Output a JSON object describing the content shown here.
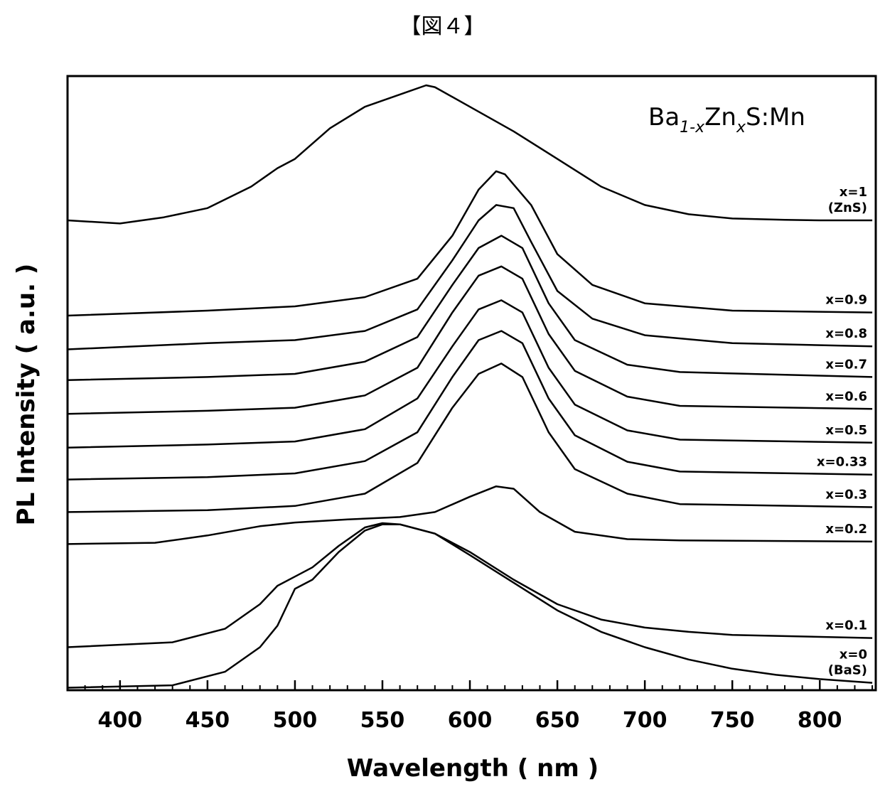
{
  "figure_label": "【図４】",
  "chart_data": {
    "type": "line",
    "title": "",
    "compound": {
      "base1": "Ba",
      "sub1": "1-x",
      "base2": "Zn",
      "sub2": "x",
      "base3": "S:Mn"
    },
    "xlabel": "Wavelength ( nm )",
    "ylabel": "PL Intensity ( a.u. )",
    "xlim": [
      370,
      832
    ],
    "ylim": [
      0,
      100
    ],
    "x_ticks": [
      400,
      450,
      500,
      550,
      600,
      650,
      700,
      750,
      800
    ],
    "grid": false,
    "legend": "labels at right end of each curve",
    "note": "Spectra are vertically offset; y values are relative units",
    "series": [
      {
        "name": "x=1 (ZnS)",
        "label_lines": [
          "x=1",
          "(ZnS)"
        ],
        "points": [
          [
            370,
            76.5
          ],
          [
            400,
            76.0
          ],
          [
            425,
            77.0
          ],
          [
            450,
            78.5
          ],
          [
            475,
            82.0
          ],
          [
            490,
            85.0
          ],
          [
            500,
            86.5
          ],
          [
            520,
            91.5
          ],
          [
            540,
            95.0
          ],
          [
            560,
            97.0
          ],
          [
            575,
            98.5
          ],
          [
            580,
            98.2
          ],
          [
            600,
            95.0
          ],
          [
            625,
            91.0
          ],
          [
            650,
            86.5
          ],
          [
            675,
            82.0
          ],
          [
            700,
            79.0
          ],
          [
            725,
            77.5
          ],
          [
            750,
            76.8
          ],
          [
            780,
            76.6
          ],
          [
            800,
            76.5
          ],
          [
            830,
            76.5
          ]
        ]
      },
      {
        "name": "x=0.9",
        "label_lines": [
          "x=0.9"
        ],
        "points": [
          [
            370,
            61.0
          ],
          [
            450,
            61.8
          ],
          [
            500,
            62.5
          ],
          [
            540,
            64.0
          ],
          [
            570,
            67.0
          ],
          [
            590,
            74.0
          ],
          [
            605,
            81.5
          ],
          [
            615,
            84.5
          ],
          [
            620,
            84.0
          ],
          [
            635,
            79.0
          ],
          [
            650,
            71.0
          ],
          [
            670,
            66.0
          ],
          [
            700,
            63.0
          ],
          [
            750,
            61.8
          ],
          [
            830,
            61.5
          ]
        ]
      },
      {
        "name": "x=0.8",
        "label_lines": [
          "x=0.8"
        ],
        "points": [
          [
            370,
            55.5
          ],
          [
            450,
            56.5
          ],
          [
            500,
            57.0
          ],
          [
            540,
            58.5
          ],
          [
            570,
            62.0
          ],
          [
            590,
            70.0
          ],
          [
            605,
            76.5
          ],
          [
            615,
            79.0
          ],
          [
            625,
            78.5
          ],
          [
            635,
            73.0
          ],
          [
            650,
            65.0
          ],
          [
            670,
            60.5
          ],
          [
            700,
            57.8
          ],
          [
            750,
            56.5
          ],
          [
            830,
            56.0
          ]
        ]
      },
      {
        "name": "x=0.7",
        "label_lines": [
          "x=0.7"
        ],
        "points": [
          [
            370,
            50.5
          ],
          [
            450,
            51.0
          ],
          [
            500,
            51.5
          ],
          [
            540,
            53.5
          ],
          [
            570,
            57.5
          ],
          [
            590,
            66.0
          ],
          [
            605,
            72.0
          ],
          [
            618,
            74.0
          ],
          [
            630,
            72.0
          ],
          [
            645,
            63.0
          ],
          [
            660,
            57.0
          ],
          [
            690,
            53.0
          ],
          [
            720,
            51.8
          ],
          [
            830,
            51.0
          ]
        ]
      },
      {
        "name": "x=0.6",
        "label_lines": [
          "x=0.6"
        ],
        "points": [
          [
            370,
            45.0
          ],
          [
            450,
            45.5
          ],
          [
            500,
            46.0
          ],
          [
            540,
            48.0
          ],
          [
            570,
            52.5
          ],
          [
            590,
            61.5
          ],
          [
            605,
            67.5
          ],
          [
            618,
            69.0
          ],
          [
            630,
            67.0
          ],
          [
            645,
            58.0
          ],
          [
            660,
            52.0
          ],
          [
            690,
            47.8
          ],
          [
            720,
            46.3
          ],
          [
            830,
            45.8
          ]
        ]
      },
      {
        "name": "x=0.5",
        "label_lines": [
          "x=0.5"
        ],
        "points": [
          [
            370,
            39.5
          ],
          [
            450,
            40.0
          ],
          [
            500,
            40.5
          ],
          [
            540,
            42.5
          ],
          [
            570,
            47.5
          ],
          [
            590,
            56.0
          ],
          [
            605,
            62.0
          ],
          [
            618,
            63.5
          ],
          [
            630,
            61.5
          ],
          [
            645,
            52.5
          ],
          [
            660,
            46.5
          ],
          [
            690,
            42.3
          ],
          [
            720,
            40.8
          ],
          [
            830,
            40.3
          ]
        ]
      },
      {
        "name": "x=0.33",
        "label_lines": [
          "x=0.33"
        ],
        "points": [
          [
            370,
            34.3
          ],
          [
            450,
            34.7
          ],
          [
            500,
            35.3
          ],
          [
            540,
            37.3
          ],
          [
            570,
            42.0
          ],
          [
            590,
            51.0
          ],
          [
            605,
            57.0
          ],
          [
            618,
            58.5
          ],
          [
            630,
            56.5
          ],
          [
            645,
            47.5
          ],
          [
            660,
            41.5
          ],
          [
            690,
            37.2
          ],
          [
            720,
            35.6
          ],
          [
            830,
            35.1
          ]
        ]
      },
      {
        "name": "x=0.3",
        "label_lines": [
          "x=0.3"
        ],
        "points": [
          [
            370,
            29.0
          ],
          [
            450,
            29.3
          ],
          [
            500,
            30.0
          ],
          [
            540,
            32.0
          ],
          [
            570,
            37.0
          ],
          [
            590,
            46.0
          ],
          [
            605,
            51.5
          ],
          [
            618,
            53.2
          ],
          [
            630,
            51.0
          ],
          [
            645,
            42.0
          ],
          [
            660,
            36.0
          ],
          [
            690,
            32.0
          ],
          [
            720,
            30.3
          ],
          [
            830,
            29.8
          ]
        ]
      },
      {
        "name": "x=0.2",
        "label_lines": [
          "x=0.2"
        ],
        "points": [
          [
            370,
            23.8
          ],
          [
            420,
            24.0
          ],
          [
            450,
            25.2
          ],
          [
            480,
            26.7
          ],
          [
            500,
            27.3
          ],
          [
            530,
            27.8
          ],
          [
            560,
            28.2
          ],
          [
            580,
            29.0
          ],
          [
            600,
            31.5
          ],
          [
            615,
            33.2
          ],
          [
            625,
            32.8
          ],
          [
            640,
            29.0
          ],
          [
            660,
            25.8
          ],
          [
            690,
            24.6
          ],
          [
            720,
            24.4
          ],
          [
            830,
            24.2
          ]
        ]
      },
      {
        "name": "x=0.1",
        "label_lines": [
          "x=0.1"
        ],
        "points": [
          [
            370,
            7.0
          ],
          [
            430,
            7.8
          ],
          [
            460,
            10.0
          ],
          [
            480,
            14.0
          ],
          [
            490,
            17.0
          ],
          [
            500,
            18.5
          ],
          [
            510,
            20.0
          ],
          [
            525,
            23.5
          ],
          [
            540,
            26.5
          ],
          [
            550,
            27.2
          ],
          [
            560,
            27.0
          ],
          [
            580,
            25.5
          ],
          [
            600,
            22.5
          ],
          [
            625,
            18.0
          ],
          [
            650,
            14.0
          ],
          [
            675,
            11.5
          ],
          [
            700,
            10.2
          ],
          [
            725,
            9.5
          ],
          [
            750,
            9.0
          ],
          [
            830,
            8.5
          ]
        ]
      },
      {
        "name": "x=0 (BaS)",
        "label_lines": [
          "x=0",
          "(BaS)"
        ],
        "points": [
          [
            370,
            0.4
          ],
          [
            430,
            0.8
          ],
          [
            460,
            3.0
          ],
          [
            480,
            7.0
          ],
          [
            490,
            10.5
          ],
          [
            495,
            13.5
          ],
          [
            500,
            16.5
          ],
          [
            510,
            18.0
          ],
          [
            525,
            22.5
          ],
          [
            540,
            26.0
          ],
          [
            550,
            27.0
          ],
          [
            560,
            27.0
          ],
          [
            580,
            25.5
          ],
          [
            600,
            22.0
          ],
          [
            625,
            17.5
          ],
          [
            650,
            13.0
          ],
          [
            675,
            9.5
          ],
          [
            700,
            7.0
          ],
          [
            725,
            5.0
          ],
          [
            750,
            3.5
          ],
          [
            775,
            2.5
          ],
          [
            800,
            1.8
          ],
          [
            830,
            1.2
          ]
        ]
      }
    ]
  }
}
